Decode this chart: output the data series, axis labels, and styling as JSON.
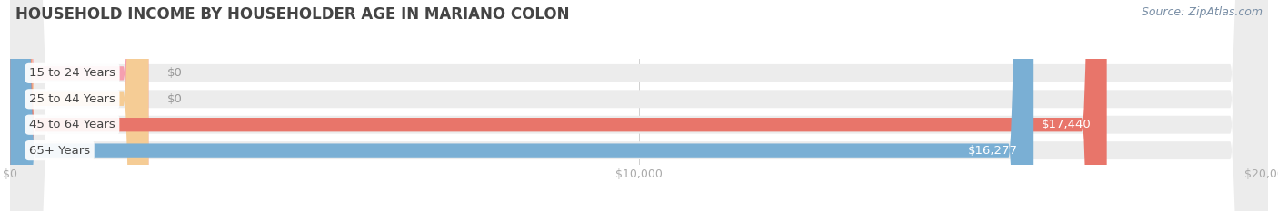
{
  "title": "HOUSEHOLD INCOME BY HOUSEHOLDER AGE IN MARIANO COLON",
  "source": "Source: ZipAtlas.com",
  "categories": [
    "15 to 24 Years",
    "25 to 44 Years",
    "45 to 64 Years",
    "65+ Years"
  ],
  "values": [
    0,
    0,
    17440,
    16277
  ],
  "bar_colors": [
    "#f5a0b0",
    "#f5cc95",
    "#e8756a",
    "#7aafd4"
  ],
  "bar_bg_color": "#ececec",
  "xlim": [
    0,
    20000
  ],
  "xticks": [
    0,
    10000,
    20000
  ],
  "xtick_labels": [
    "$0",
    "$10,000",
    "$20,000"
  ],
  "title_fontsize": 12,
  "title_color": "#444444",
  "label_fontsize": 9.5,
  "value_label_color": "#ffffff",
  "source_color": "#7a8fa6",
  "source_fontsize": 9,
  "bg_color": "#ffffff",
  "zero_bar_width": 2200
}
